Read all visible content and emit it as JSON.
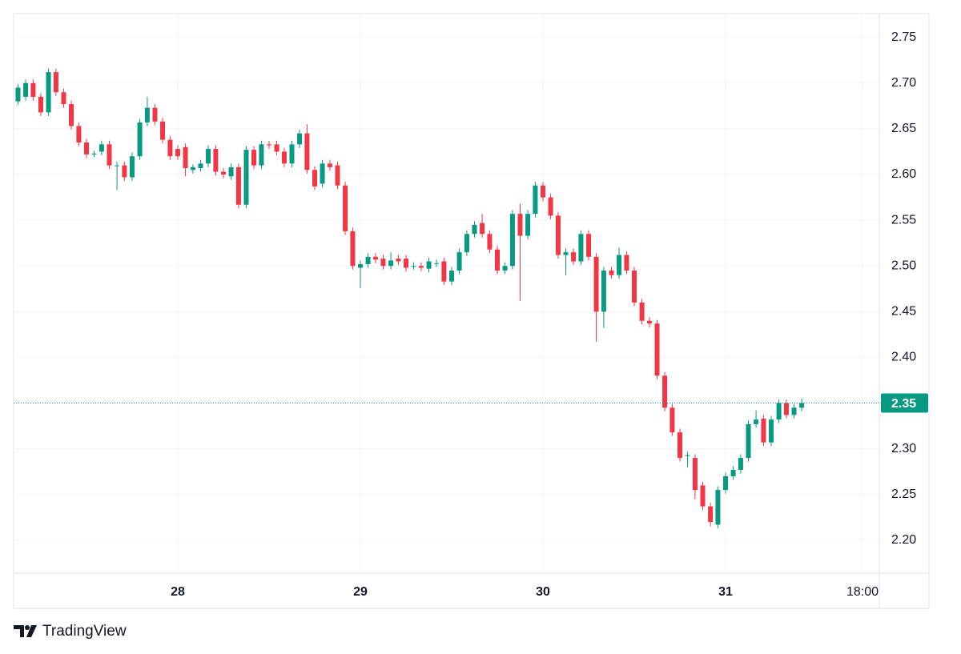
{
  "chart_data": {
    "type": "candlestick",
    "x": [
      27.125,
      27.167,
      27.208,
      27.25,
      27.292,
      27.333,
      27.375,
      27.417,
      27.458,
      27.5,
      27.542,
      27.583,
      27.625,
      27.667,
      27.708,
      27.75,
      27.792,
      27.833,
      27.875,
      27.917,
      27.958,
      28,
      28.042,
      28.083,
      28.125,
      28.167,
      28.208,
      28.25,
      28.292,
      28.333,
      28.375,
      28.417,
      28.458,
      28.5,
      28.542,
      28.583,
      28.625,
      28.667,
      28.708,
      28.75,
      28.792,
      28.833,
      28.875,
      28.917,
      28.958,
      29,
      29.042,
      29.083,
      29.125,
      29.167,
      29.208,
      29.25,
      29.292,
      29.333,
      29.375,
      29.417,
      29.458,
      29.5,
      29.542,
      29.583,
      29.625,
      29.667,
      29.708,
      29.75,
      29.792,
      29.833,
      29.875,
      29.917,
      29.958,
      30,
      30.042,
      30.083,
      30.125,
      30.167,
      30.208,
      30.25,
      30.292,
      30.333,
      30.375,
      30.417,
      30.458,
      30.5,
      30.542,
      30.583,
      30.625,
      30.667,
      30.708,
      30.75,
      30.792,
      30.833,
      30.875,
      30.917,
      30.958,
      31,
      31.042,
      31.083,
      31.125,
      31.167,
      31.208,
      31.25,
      31.292,
      31.333,
      31.375,
      31.417
    ],
    "open": [
      2.68,
      2.685,
      2.7,
      2.685,
      2.668,
      2.712,
      2.69,
      2.677,
      2.653,
      2.635,
      2.622,
      2.625,
      2.633,
      2.61,
      2.61,
      2.597,
      2.62,
      2.657,
      2.673,
      2.658,
      2.638,
      2.628,
      2.63,
      2.605,
      2.607,
      2.612,
      2.628,
      2.603,
      2.598,
      2.608,
      2.567,
      2.627,
      2.61,
      2.633,
      2.633,
      2.625,
      2.612,
      2.633,
      2.645,
      2.605,
      2.59,
      2.612,
      2.61,
      2.588,
      2.538,
      2.498,
      2.502,
      2.51,
      2.508,
      2.5,
      2.508,
      2.508,
      2.5,
      2.5,
      2.497,
      2.503,
      2.505,
      2.483,
      2.495,
      2.515,
      2.535,
      2.547,
      2.535,
      2.518,
      2.495,
      2.5,
      2.557,
      2.533,
      2.557,
      2.588,
      2.575,
      2.555,
      2.512,
      2.515,
      2.505,
      2.535,
      2.51,
      2.45,
      2.495,
      2.49,
      2.512,
      2.495,
      2.46,
      2.44,
      2.437,
      2.38,
      2.345,
      2.318,
      2.293,
      2.29,
      2.26,
      2.237,
      2.217,
      2.255,
      2.27,
      2.277,
      2.29,
      2.327,
      2.333,
      2.307,
      2.332,
      2.35,
      2.337,
      2.345
    ],
    "high": [
      2.699,
      2.704,
      2.704,
      2.689,
      2.716,
      2.716,
      2.694,
      2.681,
      2.657,
      2.639,
      2.626,
      2.637,
      2.637,
      2.614,
      2.614,
      2.624,
      2.661,
      2.685,
      2.677,
      2.662,
      2.642,
      2.632,
      2.634,
      2.611,
      2.616,
      2.632,
      2.632,
      2.607,
      2.612,
      2.612,
      2.631,
      2.631,
      2.637,
      2.637,
      2.637,
      2.629,
      2.637,
      2.649,
      2.655,
      2.609,
      2.616,
      2.616,
      2.614,
      2.592,
      2.542,
      2.506,
      2.514,
      2.514,
      2.512,
      2.515,
      2.512,
      2.512,
      2.504,
      2.504,
      2.509,
      2.507,
      2.509,
      2.499,
      2.519,
      2.539,
      2.549,
      2.557,
      2.539,
      2.522,
      2.504,
      2.561,
      2.568,
      2.561,
      2.592,
      2.592,
      2.579,
      2.559,
      2.519,
      2.519,
      2.539,
      2.539,
      2.514,
      2.499,
      2.499,
      2.52,
      2.516,
      2.499,
      2.464,
      2.444,
      2.441,
      2.384,
      2.349,
      2.322,
      2.297,
      2.294,
      2.264,
      2.241,
      2.259,
      2.274,
      2.281,
      2.294,
      2.331,
      2.342,
      2.337,
      2.336,
      2.354,
      2.354,
      2.349,
      2.355
    ],
    "low": [
      2.676,
      2.681,
      2.681,
      2.664,
      2.664,
      2.686,
      2.673,
      2.649,
      2.631,
      2.618,
      2.619,
      2.621,
      2.606,
      2.583,
      2.593,
      2.593,
      2.616,
      2.653,
      2.654,
      2.634,
      2.616,
      2.616,
      2.598,
      2.601,
      2.603,
      2.608,
      2.599,
      2.596,
      2.594,
      2.563,
      2.563,
      2.606,
      2.606,
      2.628,
      2.621,
      2.608,
      2.608,
      2.629,
      2.601,
      2.583,
      2.586,
      2.604,
      2.584,
      2.534,
      2.496,
      2.476,
      2.498,
      2.503,
      2.496,
      2.496,
      2.501,
      2.494,
      2.496,
      2.494,
      2.493,
      2.499,
      2.479,
      2.479,
      2.491,
      2.511,
      2.531,
      2.531,
      2.514,
      2.491,
      2.491,
      2.496,
      2.462,
      2.529,
      2.553,
      2.571,
      2.551,
      2.508,
      2.49,
      2.501,
      2.501,
      2.506,
      2.417,
      2.432,
      2.486,
      2.486,
      2.491,
      2.456,
      2.436,
      2.433,
      2.376,
      2.341,
      2.314,
      2.286,
      2.28,
      2.245,
      2.233,
      2.215,
      2.213,
      2.251,
      2.266,
      2.273,
      2.286,
      2.323,
      2.303,
      2.303,
      2.328,
      2.333,
      2.333,
      2.341
    ],
    "close": [
      2.695,
      2.7,
      2.685,
      2.668,
      2.712,
      2.69,
      2.677,
      2.653,
      2.635,
      2.622,
      2.623,
      2.633,
      2.61,
      2.61,
      2.597,
      2.62,
      2.657,
      2.673,
      2.658,
      2.638,
      2.62,
      2.62,
      2.607,
      2.608,
      2.612,
      2.628,
      2.603,
      2.6,
      2.608,
      2.567,
      2.627,
      2.61,
      2.633,
      2.632,
      2.625,
      2.612,
      2.633,
      2.645,
      2.605,
      2.587,
      2.612,
      2.608,
      2.588,
      2.538,
      2.5,
      2.502,
      2.51,
      2.507,
      2.5,
      2.506,
      2.505,
      2.498,
      2.5,
      2.498,
      2.505,
      2.503,
      2.483,
      2.495,
      2.515,
      2.535,
      2.545,
      2.535,
      2.518,
      2.495,
      2.5,
      2.557,
      2.533,
      2.557,
      2.588,
      2.575,
      2.555,
      2.512,
      2.515,
      2.505,
      2.535,
      2.51,
      2.45,
      2.495,
      2.49,
      2.512,
      2.495,
      2.46,
      2.44,
      2.437,
      2.38,
      2.345,
      2.318,
      2.29,
      2.293,
      2.255,
      2.237,
      2.22,
      2.255,
      2.27,
      2.277,
      2.29,
      2.327,
      2.332,
      2.307,
      2.332,
      2.35,
      2.337,
      2.345,
      2.35
    ],
    "up_color": "#089981",
    "down_color": "#f23645",
    "xlim": [
      27.101,
      31.842
    ],
    "xticks": [
      28,
      29,
      30,
      31,
      {
        "value": 31.75,
        "label": "18:00"
      }
    ],
    "ylim": [
      2.164,
      2.776
    ],
    "yticks": [
      {
        "value": 2.2,
        "label": "2.20"
      },
      2.25,
      {
        "value": 2.3,
        "label": "2.30"
      },
      2.35,
      {
        "value": 2.4,
        "label": "2.40"
      },
      2.45,
      {
        "value": 2.5,
        "label": "2.50"
      },
      2.55,
      {
        "value": 2.6,
        "label": "2.60"
      },
      2.65,
      {
        "value": 2.7,
        "label": "2.70"
      },
      2.75
    ],
    "last_price": 2.35,
    "grid": true,
    "brand": "TradingView"
  }
}
